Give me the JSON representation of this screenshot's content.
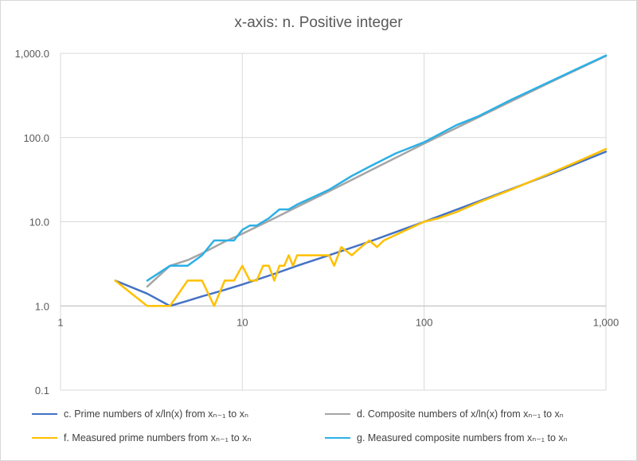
{
  "chart_data": {
    "type": "line",
    "title": "x-axis: n. Positive integer",
    "xscale": "log",
    "yscale": "log",
    "xlim": [
      1,
      1000
    ],
    "ylim": [
      0.1,
      1000
    ],
    "xticks": [
      "1",
      "10",
      "100",
      "1,000"
    ],
    "yticks": [
      "0.1",
      "1.0",
      "10.0",
      "100.0",
      "1,000.0"
    ],
    "grid": true,
    "legend_position": "bottom",
    "series": [
      {
        "name": "c. Prime numbers of x/ln(x) from xₙ₋₁ to xₙ",
        "color": "#4472c4",
        "x": [
          2,
          3,
          4,
          5,
          6,
          8,
          10,
          15,
          20,
          30,
          50,
          100,
          200,
          500,
          1000
        ],
        "y": [
          2.0,
          1.4,
          1.0,
          1.15,
          1.3,
          1.55,
          1.8,
          2.4,
          3.0,
          4.0,
          5.8,
          10.0,
          17.5,
          37.0,
          68.0
        ]
      },
      {
        "name": "d. Composite numbers of x/ln(x) from xₙ₋₁ to xₙ",
        "color": "#a5a5a5",
        "x": [
          3,
          4,
          5,
          6,
          8,
          10,
          15,
          20,
          30,
          50,
          100,
          200,
          500,
          1000
        ],
        "y": [
          1.7,
          3.0,
          3.5,
          4.2,
          5.8,
          7.2,
          11.0,
          15.0,
          23.0,
          40.0,
          85.0,
          175.0,
          460.0,
          930.0
        ]
      },
      {
        "name": "f. Measured prime numbers from xₙ₋₁ to xₙ",
        "color": "#ffc000",
        "x": [
          2,
          3,
          4,
          5,
          6,
          7,
          8,
          9,
          10,
          11,
          12,
          13,
          14,
          15,
          16,
          17,
          18,
          19,
          20,
          25,
          30,
          32,
          35,
          40,
          45,
          50,
          55,
          60,
          70,
          80,
          100,
          120,
          150,
          200,
          300,
          500,
          700,
          1000
        ],
        "y": [
          2,
          1,
          1,
          2,
          2,
          1,
          2,
          2,
          3,
          2,
          2,
          3,
          3,
          2,
          3,
          3,
          4,
          3,
          4,
          4,
          4,
          3,
          5,
          4,
          5,
          6,
          5,
          6,
          7,
          8,
          10,
          11,
          13,
          17,
          24,
          38,
          52,
          73
        ]
      },
      {
        "name": "g. Measured composite numbers from xₙ₋₁ to xₙ",
        "color": "#2bb0e6",
        "x": [
          3,
          4,
          5,
          6,
          7,
          8,
          9,
          10,
          11,
          12,
          14,
          16,
          18,
          20,
          25,
          30,
          40,
          50,
          70,
          100,
          150,
          200,
          300,
          500,
          700,
          1000
        ],
        "y": [
          2,
          3,
          3,
          4,
          6,
          6,
          6,
          8,
          9,
          9,
          11,
          14,
          14,
          16,
          20,
          24,
          35,
          45,
          65,
          88,
          140,
          180,
          280,
          470,
          660,
          940
        ]
      }
    ]
  }
}
